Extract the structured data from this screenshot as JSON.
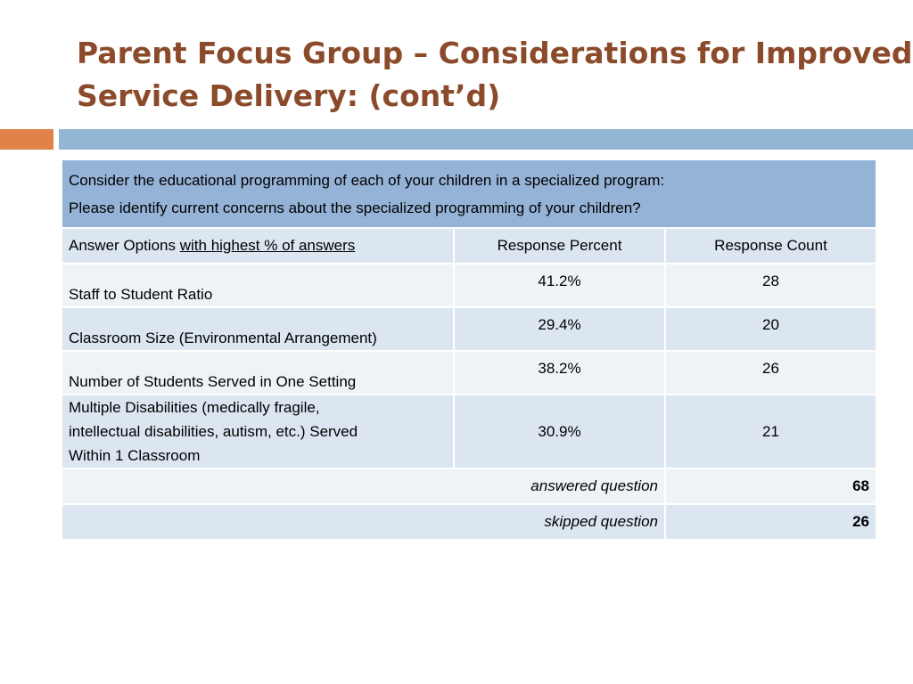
{
  "slide": {
    "title_line1": "Parent Focus Group – Considerations for Improved",
    "title_line2": "Service Delivery: (cont’d)",
    "colors": {
      "title": "#8b4b2b",
      "accent_orange": "#e0824a",
      "accent_blue": "#93b6d4"
    }
  },
  "table": {
    "question_line1": "Consider the educational programming of each of your children in a specialized program:",
    "question_line2": "Please identify current concerns about the specialized programming of your children?",
    "header": {
      "answer_options": "Answer Options ",
      "answer_options_underlined": "with highest % of answers",
      "response_percent": "Response Percent",
      "response_count": "Response Count"
    },
    "rows": [
      {
        "option": "Staff to Student Ratio",
        "percent": "41.2%",
        "count": "28"
      },
      {
        "option": "Classroom Size (Environmental Arrangement)",
        "percent": "29.4%",
        "count": "20"
      },
      {
        "option": "Number of Students Served in One Setting",
        "percent": "38.2%",
        "count": "26"
      },
      {
        "option_line1": "Multiple Disabilities (medically fragile,",
        "option_line2": "intellectual disabilities, autism, etc.) Served",
        "option_line3": "Within 1 Classroom",
        "percent": "30.9%",
        "count": "21"
      }
    ],
    "answered_label": "answered question",
    "answered_value": "68",
    "skipped_label": "skipped question",
    "skipped_value": "26"
  }
}
